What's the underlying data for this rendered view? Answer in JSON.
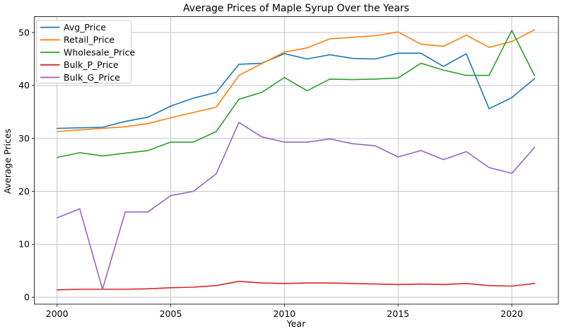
{
  "figure": {
    "title": "Average Prices of Maple Syrup Over the Years",
    "xlabel": "Year",
    "ylabel": "Average Prices"
  },
  "chart_data": {
    "type": "line",
    "title": "Average Prices of Maple Syrup Over the Years",
    "xlabel": "Year",
    "ylabel": "Average Prices",
    "grid": true,
    "legend_position": "upper left",
    "xlim": [
      1999.0,
      2022.05
    ],
    "ylim": [
      -1.3,
      53.0
    ],
    "xticks": [
      2000,
      2005,
      2010,
      2015,
      2020
    ],
    "yticks": [
      0,
      10,
      20,
      30,
      40,
      50
    ],
    "x": [
      2000,
      2001,
      2002,
      2003,
      2004,
      2005,
      2006,
      2007,
      2008,
      2009,
      2010,
      2011,
      2012,
      2013,
      2014,
      2015,
      2016,
      2017,
      2018,
      2019,
      2020,
      2021
    ],
    "series": [
      {
        "name": "Avg_Price",
        "color": "#1f77b4",
        "values": [
          31.9,
          32.0,
          32.1,
          33.2,
          34.0,
          36.1,
          37.6,
          38.7,
          44.0,
          44.2,
          46.0,
          45.0,
          45.8,
          45.1,
          45.0,
          46.1,
          46.1,
          43.6,
          46.0,
          35.6,
          37.7,
          41.3
        ]
      },
      {
        "name": "Retail_Price",
        "color": "#ff7f0e",
        "values": [
          31.3,
          31.6,
          31.9,
          32.2,
          32.8,
          33.9,
          34.9,
          35.9,
          41.9,
          44.1,
          46.3,
          47.1,
          48.8,
          49.1,
          49.4,
          50.1,
          47.8,
          47.4,
          49.5,
          47.2,
          48.3,
          50.5
        ]
      },
      {
        "name": "Wholesale_Price",
        "color": "#2ca02c",
        "values": [
          26.4,
          27.3,
          26.7,
          27.2,
          27.7,
          29.3,
          29.3,
          31.3,
          37.4,
          38.7,
          41.5,
          39.0,
          41.2,
          41.1,
          41.2,
          41.4,
          44.2,
          42.9,
          41.9,
          41.9,
          50.4,
          41.9
        ]
      },
      {
        "name": "Bulk_P_Price",
        "color": "#d62728",
        "values": [
          1.4,
          1.5,
          1.5,
          1.5,
          1.6,
          1.8,
          1.9,
          2.2,
          3.0,
          2.7,
          2.6,
          2.7,
          2.7,
          2.6,
          2.5,
          2.4,
          2.5,
          2.4,
          2.6,
          2.2,
          2.1,
          2.6
        ]
      },
      {
        "name": "Bulk_G_Price",
        "color": "#9467bd",
        "values": [
          15.0,
          16.7,
          1.5,
          16.1,
          16.1,
          19.2,
          20.0,
          23.3,
          33.0,
          30.3,
          29.3,
          29.3,
          29.9,
          29.0,
          28.6,
          26.5,
          27.7,
          26.0,
          27.5,
          24.5,
          23.4,
          28.3
        ]
      }
    ],
    "style": {
      "grid_color": "#c6c6c6",
      "spine_color": "#2b2b2b",
      "legend_border": "#cccccc",
      "background": "#ffffff"
    }
  }
}
